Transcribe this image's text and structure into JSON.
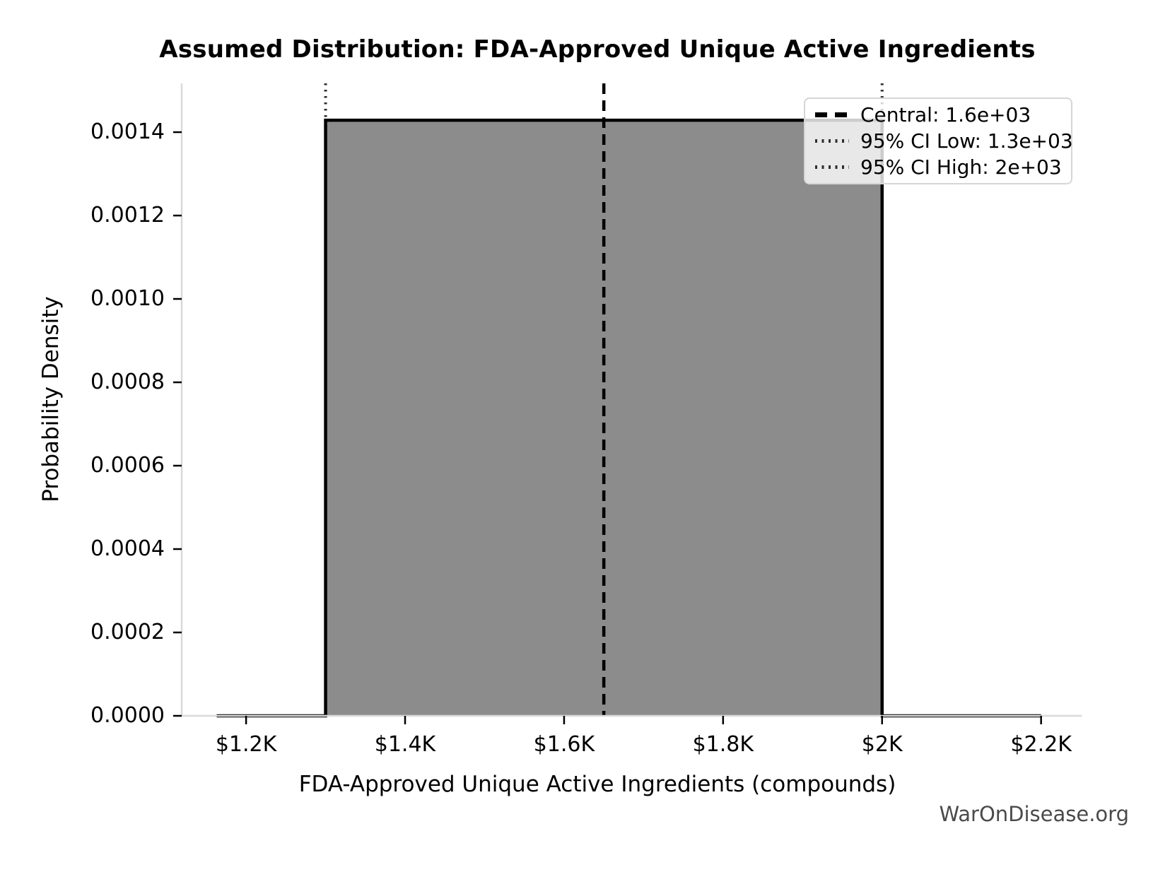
{
  "page": {
    "watermark": "WarOnDisease.org"
  },
  "chart_data": {
    "type": "area",
    "title": "Assumed Distribution: FDA-Approved Unique Active Ingredients",
    "xlabel": "FDA-Approved Unique Active Ingredients (compounds)",
    "ylabel": "Probability Density",
    "distribution": {
      "shape": "uniform",
      "ci_low": 1300,
      "ci_high": 2000,
      "central": 1650,
      "pdf_height": 0.00142857,
      "line_x_extent": [
        1163,
        2200
      ]
    },
    "xlim": [
      1119,
      2251
    ],
    "ylim": [
      0,
      0.001517
    ],
    "grid": false,
    "x_ticks": [
      {
        "value": 1200,
        "label": "$1.2K"
      },
      {
        "value": 1400,
        "label": "$1.4K"
      },
      {
        "value": 1600,
        "label": "$1.6K"
      },
      {
        "value": 1800,
        "label": "$1.8K"
      },
      {
        "value": 2000,
        "label": "$2K"
      },
      {
        "value": 2200,
        "label": "$2.2K"
      }
    ],
    "y_ticks": [
      {
        "value": 0.0,
        "label": "0.0000"
      },
      {
        "value": 0.0002,
        "label": "0.0002"
      },
      {
        "value": 0.0004,
        "label": "0.0004"
      },
      {
        "value": 0.0006,
        "label": "0.0006"
      },
      {
        "value": 0.0008,
        "label": "0.0008"
      },
      {
        "value": 0.001,
        "label": "0.0010"
      },
      {
        "value": 0.0012,
        "label": "0.0012"
      },
      {
        "value": 0.0014,
        "label": "0.0014"
      }
    ],
    "legend": {
      "position": "top-right",
      "entries": [
        {
          "style": "dashed",
          "label": "Central: 1.6e+03"
        },
        {
          "style": "dotted",
          "label": "95% CI Low: 1.3e+03"
        },
        {
          "style": "dotted",
          "label": "95% CI High: 2e+03"
        }
      ]
    },
    "colors": {
      "fill": "#8c8c8c",
      "line": "#000000",
      "dotted_line": "#2e2e2e",
      "spine": "#d9d9d9",
      "tick": "#000000",
      "watermark": "#4a4a4a"
    }
  }
}
